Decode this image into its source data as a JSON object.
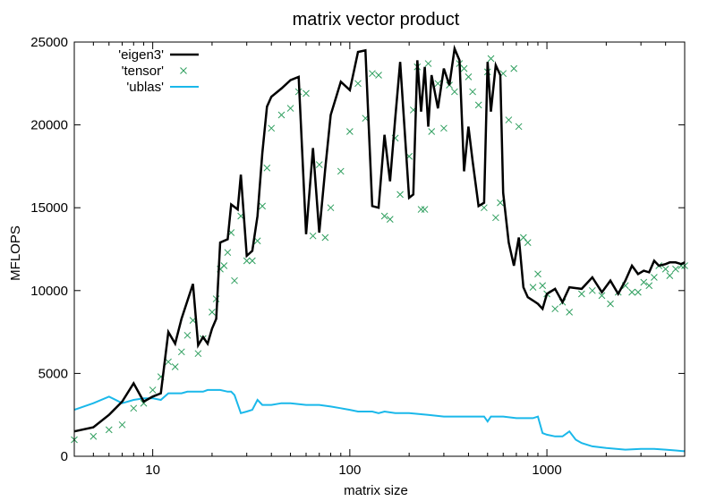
{
  "chart_data": {
    "type": "line",
    "title": "matrix vector product",
    "xlabel": "matrix size",
    "ylabel": "MFLOPS",
    "xscale": "log",
    "xlim": [
      4,
      5000
    ],
    "ylim": [
      0,
      25000
    ],
    "xticks": [
      10,
      100,
      1000
    ],
    "xtick_labels": [
      "10",
      "100",
      "1000"
    ],
    "yticks": [
      0,
      5000,
      10000,
      15000,
      20000,
      25000
    ],
    "ytick_labels": [
      "0",
      "5000",
      "10000",
      "15000",
      "20000",
      "25000"
    ],
    "grid": false,
    "legend_position": "top-left",
    "colors": {
      "eigen3": "#000000",
      "tensor": "#2e9e5e",
      "ublas": "#1ab8ea"
    },
    "series": [
      {
        "name": "'eigen3'",
        "style": "line",
        "x": [
          4,
          5,
          6,
          7,
          8,
          9,
          10,
          11,
          12,
          13,
          14,
          16,
          17,
          18,
          19,
          20,
          21,
          22,
          24,
          25,
          27,
          28,
          30,
          32,
          34,
          36,
          38,
          40,
          45,
          50,
          55,
          60,
          65,
          70,
          75,
          80,
          90,
          100,
          110,
          120,
          130,
          140,
          150,
          160,
          170,
          180,
          200,
          210,
          220,
          230,
          240,
          250,
          260,
          280,
          300,
          320,
          340,
          360,
          380,
          400,
          420,
          450,
          480,
          500,
          520,
          550,
          580,
          600,
          640,
          680,
          720,
          760,
          800,
          850,
          900,
          950,
          1000,
          1100,
          1200,
          1300,
          1500,
          1700,
          1900,
          2100,
          2300,
          2500,
          2700,
          2900,
          3100,
          3300,
          3500,
          3700,
          4000,
          4200,
          4500,
          4800,
          5000
        ],
        "values": [
          1500,
          1750,
          2500,
          3300,
          4400,
          3300,
          3600,
          3800,
          7500,
          6800,
          8300,
          10400,
          6700,
          7200,
          6800,
          7700,
          8300,
          12900,
          13100,
          15200,
          14900,
          17000,
          12100,
          12400,
          14500,
          18300,
          21100,
          21700,
          22200,
          22700,
          22900,
          13400,
          18600,
          13500,
          17300,
          20600,
          22600,
          22100,
          24400,
          24500,
          15100,
          15000,
          19400,
          16600,
          20400,
          23800,
          15600,
          15800,
          23900,
          20800,
          23500,
          19900,
          23000,
          21000,
          23400,
          22400,
          24600,
          23900,
          17200,
          19900,
          17800,
          15100,
          15300,
          23800,
          20800,
          23600,
          23000,
          15900,
          12900,
          11500,
          13200,
          10200,
          9600,
          9400,
          9200,
          8900,
          9800,
          10100,
          9300,
          10200,
          10100,
          10800,
          9900,
          10600,
          9800,
          10600,
          11500,
          11000,
          11200,
          11100,
          11800,
          11500,
          11600,
          11700,
          11700,
          11600,
          11700
        ]
      },
      {
        "name": "'tensor'",
        "style": "markers",
        "x": [
          4,
          5,
          6,
          7,
          8,
          9,
          10,
          11,
          12,
          13,
          14,
          15,
          16,
          17,
          18,
          20,
          21,
          22,
          23,
          24,
          25,
          26,
          28,
          30,
          32,
          34,
          36,
          38,
          40,
          45,
          50,
          55,
          60,
          65,
          70,
          75,
          80,
          90,
          100,
          110,
          120,
          130,
          140,
          150,
          160,
          170,
          180,
          200,
          210,
          220,
          230,
          240,
          250,
          260,
          280,
          300,
          320,
          340,
          360,
          380,
          400,
          420,
          450,
          480,
          500,
          520,
          550,
          580,
          600,
          640,
          680,
          720,
          760,
          800,
          850,
          900,
          950,
          1000,
          1100,
          1200,
          1300,
          1500,
          1700,
          1900,
          2100,
          2300,
          2500,
          2700,
          2900,
          3100,
          3300,
          3500,
          3700,
          4000,
          4200,
          4500,
          4800,
          5000
        ],
        "values": [
          1000,
          1200,
          1600,
          1900,
          2900,
          3200,
          4000,
          4800,
          5700,
          5400,
          6300,
          7300,
          8200,
          6200,
          7100,
          8700,
          9500,
          11300,
          11500,
          12300,
          13500,
          10600,
          14500,
          11800,
          11800,
          13000,
          15100,
          17400,
          19800,
          20600,
          21000,
          22000,
          21900,
          13300,
          17600,
          13200,
          15000,
          17200,
          19600,
          22500,
          20400,
          23100,
          23000,
          14500,
          14300,
          19200,
          15800,
          18100,
          20900,
          23500,
          14900,
          14900,
          23700,
          19600,
          22500,
          19800,
          22400,
          22000,
          23700,
          23400,
          22900,
          22000,
          21200,
          15000,
          23200,
          24000,
          14400,
          15300,
          23100,
          20300,
          23400,
          19900,
          13200,
          12900,
          10200,
          11000,
          10300,
          9800,
          8900,
          9300,
          8700,
          9800,
          10000,
          9700,
          9200,
          9900,
          10300,
          9900,
          9900,
          10500,
          10300,
          10800,
          11500,
          11300,
          10900,
          11300,
          11500,
          11500
        ]
      },
      {
        "name": "'ublas'",
        "style": "line",
        "x": [
          4,
          5,
          6,
          7,
          8,
          9,
          10,
          11,
          12,
          13,
          14,
          15,
          16,
          17,
          18,
          19,
          20,
          22,
          24,
          25,
          26,
          28,
          30,
          32,
          34,
          36,
          40,
          45,
          50,
          60,
          70,
          80,
          90,
          100,
          110,
          120,
          130,
          140,
          150,
          170,
          200,
          250,
          300,
          350,
          400,
          450,
          480,
          500,
          520,
          550,
          600,
          700,
          800,
          850,
          900,
          950,
          1000,
          1100,
          1200,
          1300,
          1400,
          1500,
          1700,
          2000,
          2500,
          3000,
          3500,
          4000,
          4500,
          5000
        ],
        "values": [
          2800,
          3200,
          3600,
          3200,
          3400,
          3500,
          3500,
          3400,
          3800,
          3800,
          3800,
          3900,
          3900,
          3900,
          3900,
          4000,
          4000,
          4000,
          3900,
          3900,
          3700,
          2600,
          2700,
          2800,
          3400,
          3100,
          3100,
          3200,
          3200,
          3100,
          3100,
          3000,
          2900,
          2800,
          2700,
          2700,
          2700,
          2600,
          2700,
          2600,
          2600,
          2500,
          2400,
          2400,
          2400,
          2400,
          2400,
          2100,
          2400,
          2400,
          2400,
          2300,
          2300,
          2300,
          2400,
          1400,
          1300,
          1200,
          1200,
          1500,
          1000,
          800,
          600,
          500,
          400,
          450,
          450,
          400,
          350,
          300
        ]
      }
    ]
  }
}
